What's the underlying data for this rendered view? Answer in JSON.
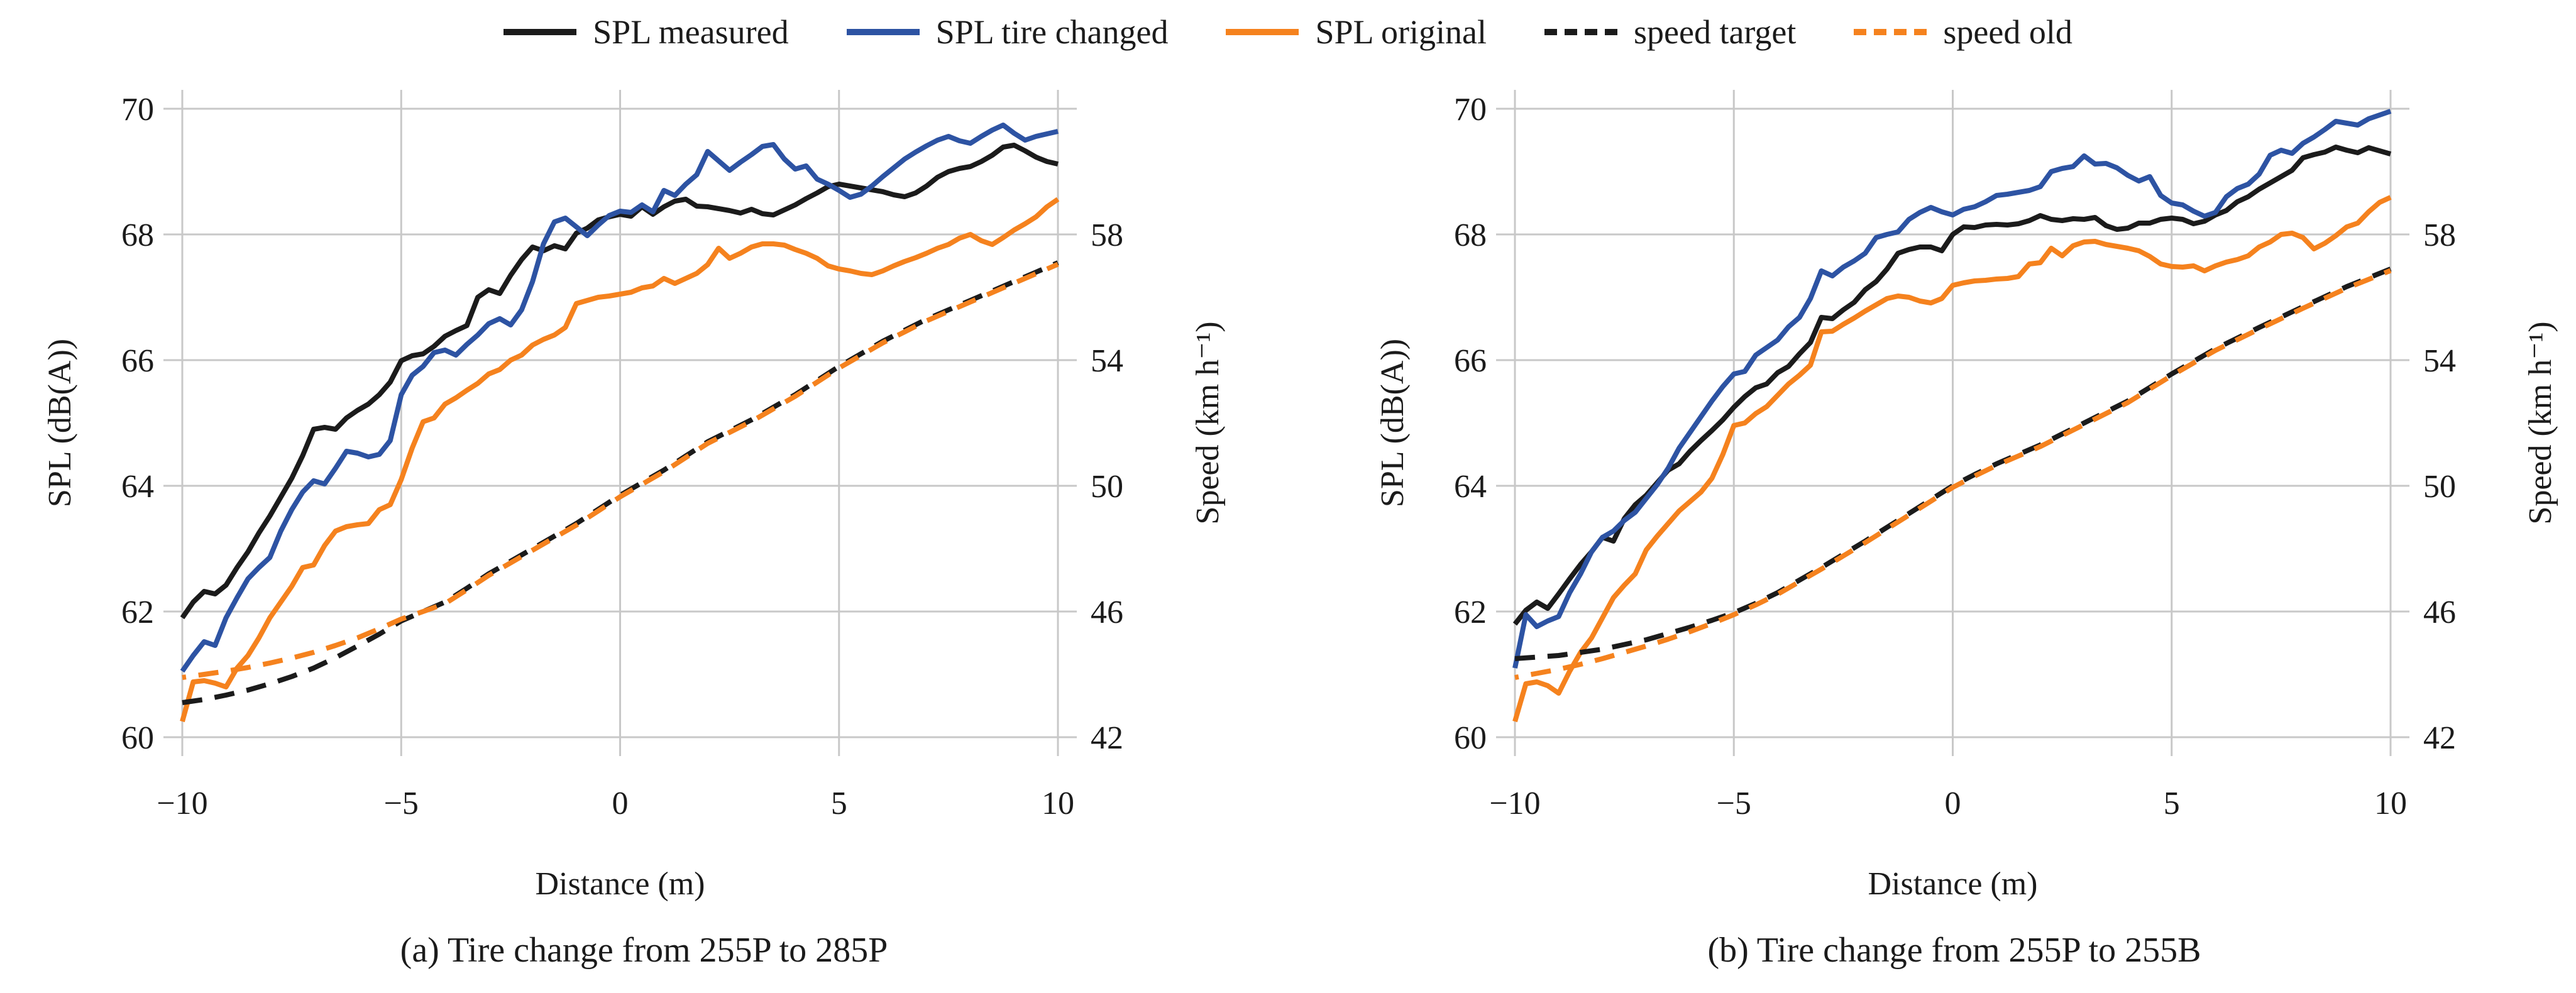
{
  "colors": {
    "black": "#1b1b1b",
    "blue": "#2d53a3",
    "orange": "#f5821e",
    "grid": "#c8c8c8",
    "text": "#1b1b1b"
  },
  "legend": {
    "items": [
      {
        "label": "SPL measured",
        "color": "#1b1b1b",
        "dash": false
      },
      {
        "label": "SPL tire changed",
        "color": "#2d53a3",
        "dash": false
      },
      {
        "label": "SPL original",
        "color": "#f5821e",
        "dash": false
      },
      {
        "label": "speed target",
        "color": "#1b1b1b",
        "dash": true
      },
      {
        "label": "speed old",
        "color": "#f5821e",
        "dash": true
      }
    ]
  },
  "chart_data": [
    {
      "type": "line",
      "panel": "a",
      "caption": "(a) Tire change from 255P to 285P",
      "xlabel": "Distance (m)",
      "ylabel_left": "SPL (dB(A))",
      "ylabel_right": "Speed (km h⁻¹)",
      "xlim": [
        -10,
        10
      ],
      "xticks": [
        -10,
        -5,
        0,
        5,
        10
      ],
      "ylim_left": [
        60,
        70
      ],
      "yticks_left": [
        60,
        62,
        64,
        66,
        68,
        70
      ],
      "ygrid_ticks": [
        60,
        62,
        64,
        66,
        68,
        70
      ],
      "ylim_right": [
        42,
        62
      ],
      "yticks_right": [
        42,
        46,
        50,
        54,
        58
      ],
      "grid": true,
      "legend_position": "top",
      "series": [
        {
          "name": "SPL measured",
          "axis": "left",
          "color": "#1b1b1b",
          "style": "solid",
          "x_start": -10,
          "x_step": 0.25,
          "values": [
            61.9,
            62.15,
            62.32,
            62.28,
            62.42,
            62.7,
            62.95,
            63.25,
            63.52,
            63.82,
            64.12,
            64.48,
            64.9,
            64.93,
            64.9,
            65.08,
            65.2,
            65.3,
            65.45,
            65.65,
            65.99,
            66.07,
            66.1,
            66.22,
            66.38,
            66.47,
            66.55,
            67.0,
            67.12,
            67.06,
            67.35,
            67.6,
            67.8,
            67.74,
            67.82,
            67.77,
            68.02,
            68.1,
            68.23,
            68.28,
            68.32,
            68.29,
            68.44,
            68.32,
            68.44,
            68.53,
            68.56,
            68.45,
            68.44,
            68.41,
            68.38,
            68.34,
            68.4,
            68.33,
            68.31,
            68.39,
            68.47,
            68.57,
            68.66,
            68.76,
            68.8,
            68.77,
            68.74,
            68.71,
            68.68,
            68.63,
            68.6,
            68.66,
            68.77,
            68.91,
            69.0,
            69.05,
            69.08,
            69.16,
            69.26,
            69.39,
            69.42,
            69.33,
            69.23,
            69.16,
            69.12
          ]
        },
        {
          "name": "SPL tire changed",
          "axis": "left",
          "color": "#2d53a3",
          "style": "solid",
          "x_start": -10,
          "x_step": 0.25,
          "values": [
            61.05,
            61.3,
            61.52,
            61.46,
            61.9,
            62.22,
            62.52,
            62.7,
            62.86,
            63.28,
            63.62,
            63.9,
            64.08,
            64.03,
            64.28,
            64.55,
            64.52,
            64.46,
            64.5,
            64.72,
            65.45,
            65.76,
            65.9,
            66.12,
            66.16,
            66.08,
            66.25,
            66.4,
            66.58,
            66.66,
            66.56,
            66.8,
            67.25,
            67.85,
            68.2,
            68.26,
            68.12,
            67.98,
            68.15,
            68.3,
            68.37,
            68.35,
            68.47,
            68.36,
            68.7,
            68.62,
            68.8,
            68.95,
            69.32,
            69.17,
            69.02,
            69.15,
            69.27,
            69.4,
            69.43,
            69.2,
            69.04,
            69.09,
            68.88,
            68.8,
            68.7,
            68.59,
            68.64,
            68.77,
            68.92,
            69.06,
            69.2,
            69.31,
            69.41,
            69.5,
            69.56,
            69.49,
            69.45,
            69.56,
            69.66,
            69.74,
            69.61,
            69.5,
            69.56,
            69.6,
            69.64
          ]
        },
        {
          "name": "SPL original",
          "axis": "left",
          "color": "#f5821e",
          "style": "solid",
          "x_start": -10,
          "x_step": 0.25,
          "values": [
            60.25,
            60.88,
            60.9,
            60.86,
            60.8,
            61.1,
            61.3,
            61.58,
            61.9,
            62.15,
            62.4,
            62.7,
            62.74,
            63.05,
            63.28,
            63.35,
            63.38,
            63.4,
            63.62,
            63.7,
            64.1,
            64.6,
            65.02,
            65.08,
            65.3,
            65.4,
            65.52,
            65.63,
            65.78,
            65.85,
            66.0,
            66.08,
            66.24,
            66.33,
            66.4,
            66.52,
            66.9,
            66.95,
            67.0,
            67.02,
            67.05,
            67.08,
            67.15,
            67.18,
            67.3,
            67.22,
            67.3,
            67.38,
            67.52,
            67.78,
            67.62,
            67.7,
            67.8,
            67.85,
            67.85,
            67.83,
            67.76,
            67.7,
            67.62,
            67.5,
            67.45,
            67.42,
            67.38,
            67.36,
            67.42,
            67.5,
            67.57,
            67.63,
            67.7,
            67.78,
            67.84,
            67.94,
            68.0,
            67.9,
            67.84,
            67.95,
            68.07,
            68.17,
            68.28,
            68.44,
            68.56
          ]
        },
        {
          "name": "speed target",
          "axis": "right",
          "color": "#1b1b1b",
          "style": "dashed",
          "dash_offset": 0,
          "x_start": -10,
          "x_step": 0.5,
          "values": [
            43.1,
            43.2,
            43.34,
            43.5,
            43.7,
            43.93,
            44.2,
            44.53,
            44.9,
            45.28,
            45.7,
            46.0,
            46.3,
            46.74,
            47.2,
            47.6,
            48.0,
            48.4,
            48.8,
            49.25,
            49.7,
            50.1,
            50.5,
            50.95,
            51.4,
            51.75,
            52.1,
            52.5,
            52.9,
            53.35,
            53.8,
            54.2,
            54.6,
            54.95,
            55.3,
            55.6,
            55.9,
            56.2,
            56.5,
            56.8,
            57.1
          ]
        },
        {
          "name": "speed old",
          "axis": "right",
          "color": "#f5821e",
          "style": "dashed",
          "dash_offset": 26,
          "x_start": -10,
          "x_step": 0.5,
          "values": [
            43.9,
            44.0,
            44.1,
            44.22,
            44.36,
            44.52,
            44.7,
            44.92,
            45.16,
            45.45,
            45.76,
            46.0,
            46.25,
            46.69,
            47.15,
            47.55,
            47.95,
            48.35,
            48.75,
            49.2,
            49.65,
            50.05,
            50.45,
            50.9,
            51.35,
            51.7,
            52.05,
            52.45,
            52.85,
            53.3,
            53.75,
            54.15,
            54.55,
            54.9,
            55.25,
            55.55,
            55.85,
            56.15,
            56.45,
            56.75,
            57.05
          ]
        }
      ]
    },
    {
      "type": "line",
      "panel": "b",
      "caption": "(b) Tire change from 255P to 255B",
      "xlabel": "Distance (m)",
      "ylabel_left": "SPL (dB(A))",
      "ylabel_right": "Speed (km h⁻¹)",
      "xlim": [
        -10,
        10
      ],
      "xticks": [
        -10,
        -5,
        0,
        5,
        10
      ],
      "ylim_left": [
        60,
        70
      ],
      "yticks_left": [
        60,
        62,
        64,
        66,
        68,
        70
      ],
      "ygrid_ticks": [
        60,
        62,
        64,
        66,
        68,
        70
      ],
      "ylim_right": [
        42,
        62
      ],
      "yticks_right": [
        42,
        46,
        50,
        54,
        58
      ],
      "grid": true,
      "legend_position": "top",
      "series": [
        {
          "name": "SPL measured",
          "axis": "left",
          "color": "#1b1b1b",
          "style": "solid",
          "x_start": -10,
          "x_step": 0.25,
          "values": [
            61.8,
            62.02,
            62.15,
            62.05,
            62.28,
            62.52,
            62.75,
            62.95,
            63.18,
            63.12,
            63.48,
            63.7,
            63.85,
            64.05,
            64.25,
            64.35,
            64.55,
            64.72,
            64.88,
            65.05,
            65.25,
            65.42,
            65.56,
            65.62,
            65.8,
            65.9,
            66.1,
            66.28,
            66.68,
            66.66,
            66.8,
            66.92,
            67.12,
            67.25,
            67.45,
            67.7,
            67.76,
            67.8,
            67.8,
            67.74,
            68.0,
            68.12,
            68.11,
            68.15,
            68.16,
            68.15,
            68.17,
            68.22,
            68.3,
            68.24,
            68.22,
            68.25,
            68.24,
            68.27,
            68.14,
            68.08,
            68.1,
            68.18,
            68.18,
            68.24,
            68.26,
            68.24,
            68.17,
            68.21,
            68.31,
            68.38,
            68.52,
            68.6,
            68.72,
            68.82,
            68.92,
            69.02,
            69.22,
            69.27,
            69.31,
            69.39,
            69.34,
            69.3,
            69.38,
            69.33,
            69.28
          ]
        },
        {
          "name": "SPL tire changed",
          "axis": "left",
          "color": "#2d53a3",
          "style": "solid",
          "x_start": -10,
          "x_step": 0.25,
          "values": [
            61.1,
            61.95,
            61.76,
            61.85,
            61.92,
            62.3,
            62.6,
            62.95,
            63.18,
            63.28,
            63.45,
            63.58,
            63.8,
            64.02,
            64.28,
            64.6,
            64.85,
            65.1,
            65.35,
            65.58,
            65.78,
            65.82,
            66.08,
            66.2,
            66.32,
            66.53,
            66.68,
            66.98,
            67.42,
            67.34,
            67.48,
            67.58,
            67.7,
            67.95,
            68.0,
            68.04,
            68.24,
            68.35,
            68.43,
            68.36,
            68.31,
            68.4,
            68.44,
            68.52,
            68.62,
            68.64,
            68.67,
            68.7,
            68.76,
            69.0,
            69.05,
            69.08,
            69.25,
            69.12,
            69.13,
            69.06,
            68.94,
            68.85,
            68.92,
            68.62,
            68.5,
            68.47,
            68.37,
            68.29,
            68.35,
            68.6,
            68.73,
            68.8,
            68.96,
            69.26,
            69.34,
            69.29,
            69.45,
            69.55,
            69.67,
            69.8,
            69.77,
            69.74,
            69.84,
            69.9,
            69.96
          ]
        },
        {
          "name": "SPL original",
          "axis": "left",
          "color": "#f5821e",
          "style": "solid",
          "x_start": -10,
          "x_step": 0.25,
          "values": [
            60.25,
            60.85,
            60.88,
            60.82,
            60.7,
            61.05,
            61.35,
            61.58,
            61.9,
            62.22,
            62.42,
            62.6,
            62.98,
            63.2,
            63.4,
            63.6,
            63.75,
            63.9,
            64.12,
            64.5,
            64.96,
            65.0,
            65.15,
            65.26,
            65.44,
            65.62,
            65.76,
            65.92,
            66.45,
            66.46,
            66.57,
            66.67,
            66.78,
            66.88,
            66.98,
            67.02,
            67.0,
            66.94,
            66.91,
            66.98,
            67.19,
            67.23,
            67.26,
            67.27,
            67.29,
            67.3,
            67.33,
            67.53,
            67.55,
            67.78,
            67.66,
            67.82,
            67.88,
            67.89,
            67.84,
            67.81,
            67.78,
            67.74,
            67.65,
            67.53,
            67.49,
            67.48,
            67.5,
            67.42,
            67.5,
            67.56,
            67.6,
            67.66,
            67.8,
            67.88,
            68.0,
            68.02,
            67.95,
            67.77,
            67.86,
            67.98,
            68.12,
            68.18,
            68.36,
            68.51,
            68.59
          ]
        },
        {
          "name": "speed target",
          "axis": "right",
          "color": "#1b1b1b",
          "style": "dashed",
          "dash_offset": 0,
          "x_start": -10,
          "x_step": 0.5,
          "values": [
            44.5,
            44.55,
            44.6,
            44.7,
            44.8,
            44.95,
            45.1,
            45.3,
            45.5,
            45.72,
            45.96,
            46.26,
            46.6,
            47.0,
            47.4,
            47.82,
            48.24,
            48.68,
            49.12,
            49.56,
            50.0,
            50.36,
            50.7,
            51.0,
            51.3,
            51.65,
            52.0,
            52.35,
            52.7,
            53.13,
            53.56,
            53.96,
            54.36,
            54.7,
            55.04,
            55.37,
            55.7,
            56.02,
            56.34,
            56.62,
            56.9
          ]
        },
        {
          "name": "speed old",
          "axis": "right",
          "color": "#f5821e",
          "style": "dashed",
          "dash_offset": 26,
          "x_start": -10,
          "x_step": 0.5,
          "values": [
            43.9,
            44.03,
            44.16,
            44.32,
            44.5,
            44.7,
            44.9,
            45.12,
            45.36,
            45.62,
            45.9,
            46.21,
            46.55,
            46.95,
            47.35,
            47.77,
            48.19,
            48.63,
            49.07,
            49.51,
            49.95,
            50.31,
            50.65,
            50.95,
            51.25,
            51.6,
            51.95,
            52.3,
            52.65,
            53.08,
            53.51,
            53.91,
            54.31,
            54.65,
            54.99,
            55.32,
            55.65,
            55.97,
            56.29,
            56.57,
            56.85
          ]
        }
      ]
    }
  ]
}
